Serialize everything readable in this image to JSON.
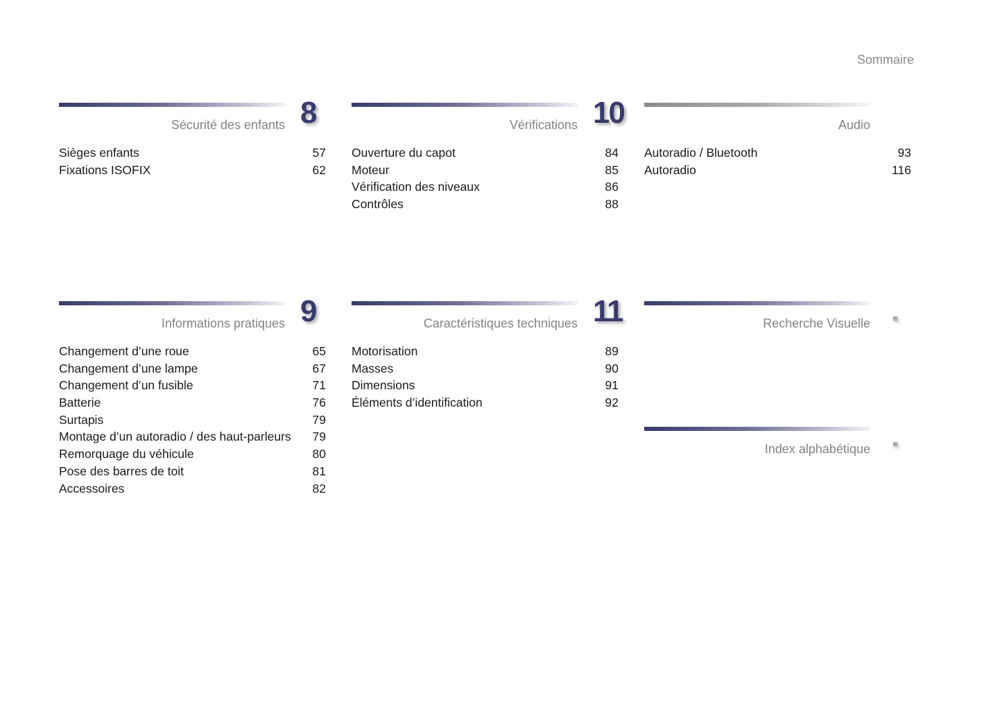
{
  "header": {
    "title": "Sommaire"
  },
  "sections": [
    {
      "id": "securite",
      "number": "8",
      "title": "Sécurité des enfants",
      "bar": "blue",
      "entries": [
        {
          "label": "Sièges enfants",
          "page": "57"
        },
        {
          "label": "Fixations ISOFIX",
          "page": "62"
        }
      ]
    },
    {
      "id": "verifications",
      "number": "10",
      "title": "Vérifications",
      "bar": "blue",
      "entries": [
        {
          "label": "Ouverture du capot",
          "page": "84"
        },
        {
          "label": "Moteur",
          "page": "85"
        },
        {
          "label": "Vérification des niveaux",
          "page": "86"
        },
        {
          "label": "Contrôles",
          "page": "88"
        }
      ]
    },
    {
      "id": "audio",
      "number": "",
      "title": "Audio",
      "bar": "grey",
      "entries": [
        {
          "label": "Autoradio / Bluetooth",
          "page": "93"
        },
        {
          "label": "Autoradio",
          "page": "116"
        }
      ]
    },
    {
      "id": "infos",
      "number": "9",
      "title": "Informations pratiques",
      "bar": "blue",
      "entries": [
        {
          "label": "Changement d’une roue",
          "page": "65"
        },
        {
          "label": "Changement d’une lampe",
          "page": "67"
        },
        {
          "label": "Changement d’un fusible",
          "page": "71"
        },
        {
          "label": "Batterie",
          "page": "76"
        },
        {
          "label": "Surtapis",
          "page": "79"
        },
        {
          "label": "Montage d’un autoradio / des haut-parleurs",
          "page": "79"
        },
        {
          "label": "Remorquage du véhicule",
          "page": "80"
        },
        {
          "label": "Pose des barres de toit",
          "page": "81"
        },
        {
          "label": "Accessoires",
          "page": "82"
        }
      ]
    },
    {
      "id": "caracteristiques",
      "number": "11",
      "title": "Caractéristiques techniques",
      "bar": "blue",
      "entries": [
        {
          "label": "Motorisation",
          "page": "89"
        },
        {
          "label": "Masses",
          "page": "90"
        },
        {
          "label": "Dimensions",
          "page": "91"
        },
        {
          "label": "Éléments d’identification",
          "page": "92"
        }
      ]
    },
    {
      "id": "recherche",
      "number": "",
      "title": "Recherche Visuelle",
      "bar": "blue",
      "marker": true,
      "entries": []
    },
    {
      "id": "index",
      "number": "",
      "title": "Index alphabétique",
      "bar": "blue",
      "marker": true,
      "entries": []
    }
  ]
}
